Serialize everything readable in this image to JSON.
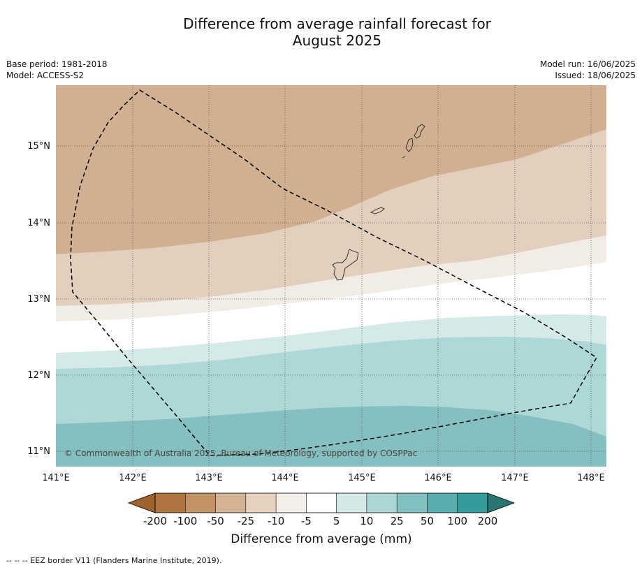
{
  "title": {
    "line1": "Difference from average rainfall forecast for",
    "line2": "August 2025"
  },
  "left_meta": {
    "base_period": "Base period: 1981-2018",
    "model": "Model: ACCESS-S2"
  },
  "right_meta": {
    "model_run": "Model run: 16/06/2025",
    "issued": "Issued: 18/06/2025"
  },
  "copyright": "© Commonwealth of Australia 2025, Bureau of Meteorology, supported by COSPPac",
  "axes": {
    "lon_labels": [
      "141°E",
      "142°E",
      "143°E",
      "144°E",
      "145°E",
      "146°E",
      "147°E",
      "148°E"
    ],
    "lat_labels": [
      "15°N",
      "14°N",
      "13°N",
      "12°N",
      "11°N"
    ]
  },
  "colorbar": {
    "ticks": [
      "-200",
      "-100",
      "-50",
      "-25",
      "-10",
      "-5",
      "5",
      "10",
      "25",
      "50",
      "100",
      "200"
    ],
    "colors": [
      "#a0632f",
      "#b0753f",
      "#c29166",
      "#d4b294",
      "#e5d1bf",
      "#f4eee8",
      "#ffffff",
      "#d5e8e8",
      "#acd6d6",
      "#83c0c0",
      "#5aadad",
      "#349c9c",
      "#277575"
    ],
    "label": "Difference from average (mm)"
  },
  "footnote": "--  --  -- EEZ border V11 (Flanders Marine Institute, 2019)."
}
